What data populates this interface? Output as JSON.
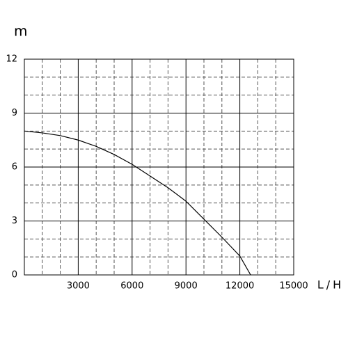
{
  "chart_data": {
    "type": "line",
    "y_label": "m",
    "x_label": "L/H",
    "x": [
      0,
      1000,
      2000,
      3000,
      4000,
      5000,
      6000,
      7000,
      8000,
      9000,
      10000,
      11000,
      12000,
      12600
    ],
    "series": [
      {
        "color": "#000000",
        "values": [
          8.0,
          7.9,
          7.75,
          7.5,
          7.15,
          6.7,
          6.15,
          5.5,
          4.85,
          4.1,
          3.1,
          2.1,
          1.05,
          0
        ]
      }
    ],
    "xlim": [
      0,
      15000
    ],
    "xticks": [
      3000,
      6000,
      9000,
      12000,
      15000
    ],
    "ylim": [
      0,
      12
    ],
    "yticks": [
      0,
      3,
      6,
      9,
      12
    ],
    "grid": true,
    "minor_divisions": 3
  }
}
